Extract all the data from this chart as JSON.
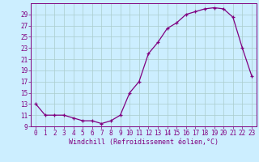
{
  "hours": [
    0,
    1,
    2,
    3,
    4,
    5,
    6,
    7,
    8,
    9,
    10,
    11,
    12,
    13,
    14,
    15,
    16,
    17,
    18,
    19,
    20,
    21,
    22,
    23
  ],
  "values": [
    13,
    11,
    11,
    11,
    10.5,
    10,
    10,
    9.5,
    10,
    11,
    15,
    17,
    22,
    24,
    26.5,
    27.5,
    29,
    29.5,
    30,
    30.2,
    30,
    28.5,
    23,
    18
  ],
  "line_color": "#800080",
  "bg_color": "#cceeff",
  "grid_color": "#aacccc",
  "xlabel": "Windchill (Refroidissement éolien,°C)",
  "xlim_min": -0.5,
  "xlim_max": 23.5,
  "ylim_min": 9,
  "ylim_max": 31,
  "yticks": [
    9,
    11,
    13,
    15,
    17,
    19,
    21,
    23,
    25,
    27,
    29
  ],
  "xticks": [
    0,
    1,
    2,
    3,
    4,
    5,
    6,
    7,
    8,
    9,
    10,
    11,
    12,
    13,
    14,
    15,
    16,
    17,
    18,
    19,
    20,
    21,
    22,
    23
  ],
  "tick_labelsize": 5.5,
  "xlabel_fontsize": 6.0,
  "marker_size": 3.5,
  "lw": 0.9
}
